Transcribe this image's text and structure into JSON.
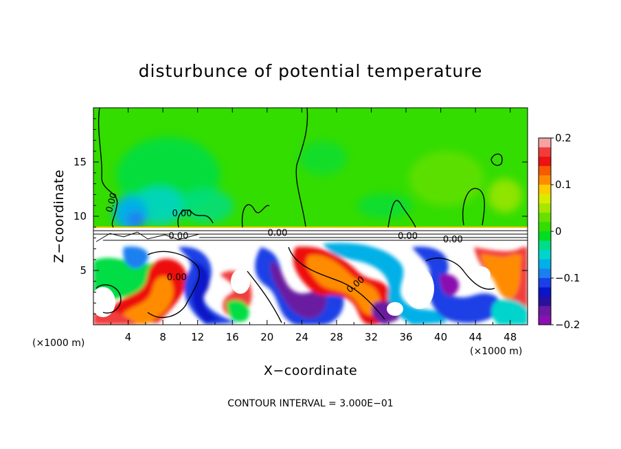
{
  "chart_data": {
    "type": "heatmap",
    "title": "disturbunce of potential temperature",
    "xlabel": "X−coordinate",
    "ylabel": "Z−coordinate",
    "x_unit_note": "(×1000 m)",
    "x_unit_note_right": "(×1000 m)",
    "footer": "CONTOUR INTERVAL = 3.000E−01",
    "xlim": [
      0,
      50
    ],
    "ylim": [
      0,
      20
    ],
    "x_ticks": [
      4,
      8,
      12,
      16,
      20,
      24,
      28,
      32,
      36,
      40,
      44,
      48
    ],
    "x_tick_labels": [
      "4",
      "8",
      "12",
      "16",
      "20",
      "24",
      "28",
      "32",
      "36",
      "40",
      "44",
      "48"
    ],
    "y_ticks": [
      5,
      10,
      15
    ],
    "y_tick_labels": [
      "5",
      "10",
      "15"
    ],
    "colorbar": {
      "min": -0.2,
      "max": 0.2,
      "ticks": [
        0.2,
        0.1,
        0,
        -0.1,
        -0.2
      ],
      "tick_labels": [
        "0.2",
        "0.1",
        "0",
        "−0.1",
        "−0.2"
      ],
      "colors": [
        "#f4a3a3",
        "#f23c3c",
        "#ee1111",
        "#f55a00",
        "#ff8c00",
        "#ffcc00",
        "#d9ec00",
        "#a6e600",
        "#66e000",
        "#33dd00",
        "#00dd22",
        "#00dd88",
        "#00d4cc",
        "#00b0e6",
        "#1a80f0",
        "#1a40e6",
        "#0a14c8",
        "#2a10a0",
        "#6a1aa0",
        "#8a10b0"
      ]
    },
    "contour_labels": [
      {
        "text": "0.00",
        "x": 2.4,
        "y": 11.2,
        "rotate": -75
      },
      {
        "text": "0.00",
        "x": 10.2,
        "y": 10.0,
        "rotate": 0
      },
      {
        "text": "0.00",
        "x": 9.8,
        "y": 7.9,
        "rotate": 0
      },
      {
        "text": "0.00",
        "x": 21.2,
        "y": 8.2,
        "rotate": 0
      },
      {
        "text": "0.00",
        "x": 36.2,
        "y": 7.9,
        "rotate": 0
      },
      {
        "text": "0.00",
        "x": 41.4,
        "y": 7.6,
        "rotate": 0
      },
      {
        "text": "0.00",
        "x": 9.6,
        "y": 4.1,
        "rotate": 0
      },
      {
        "text": "0.00",
        "x": 30.4,
        "y": 3.5,
        "rotate": -40
      }
    ]
  }
}
